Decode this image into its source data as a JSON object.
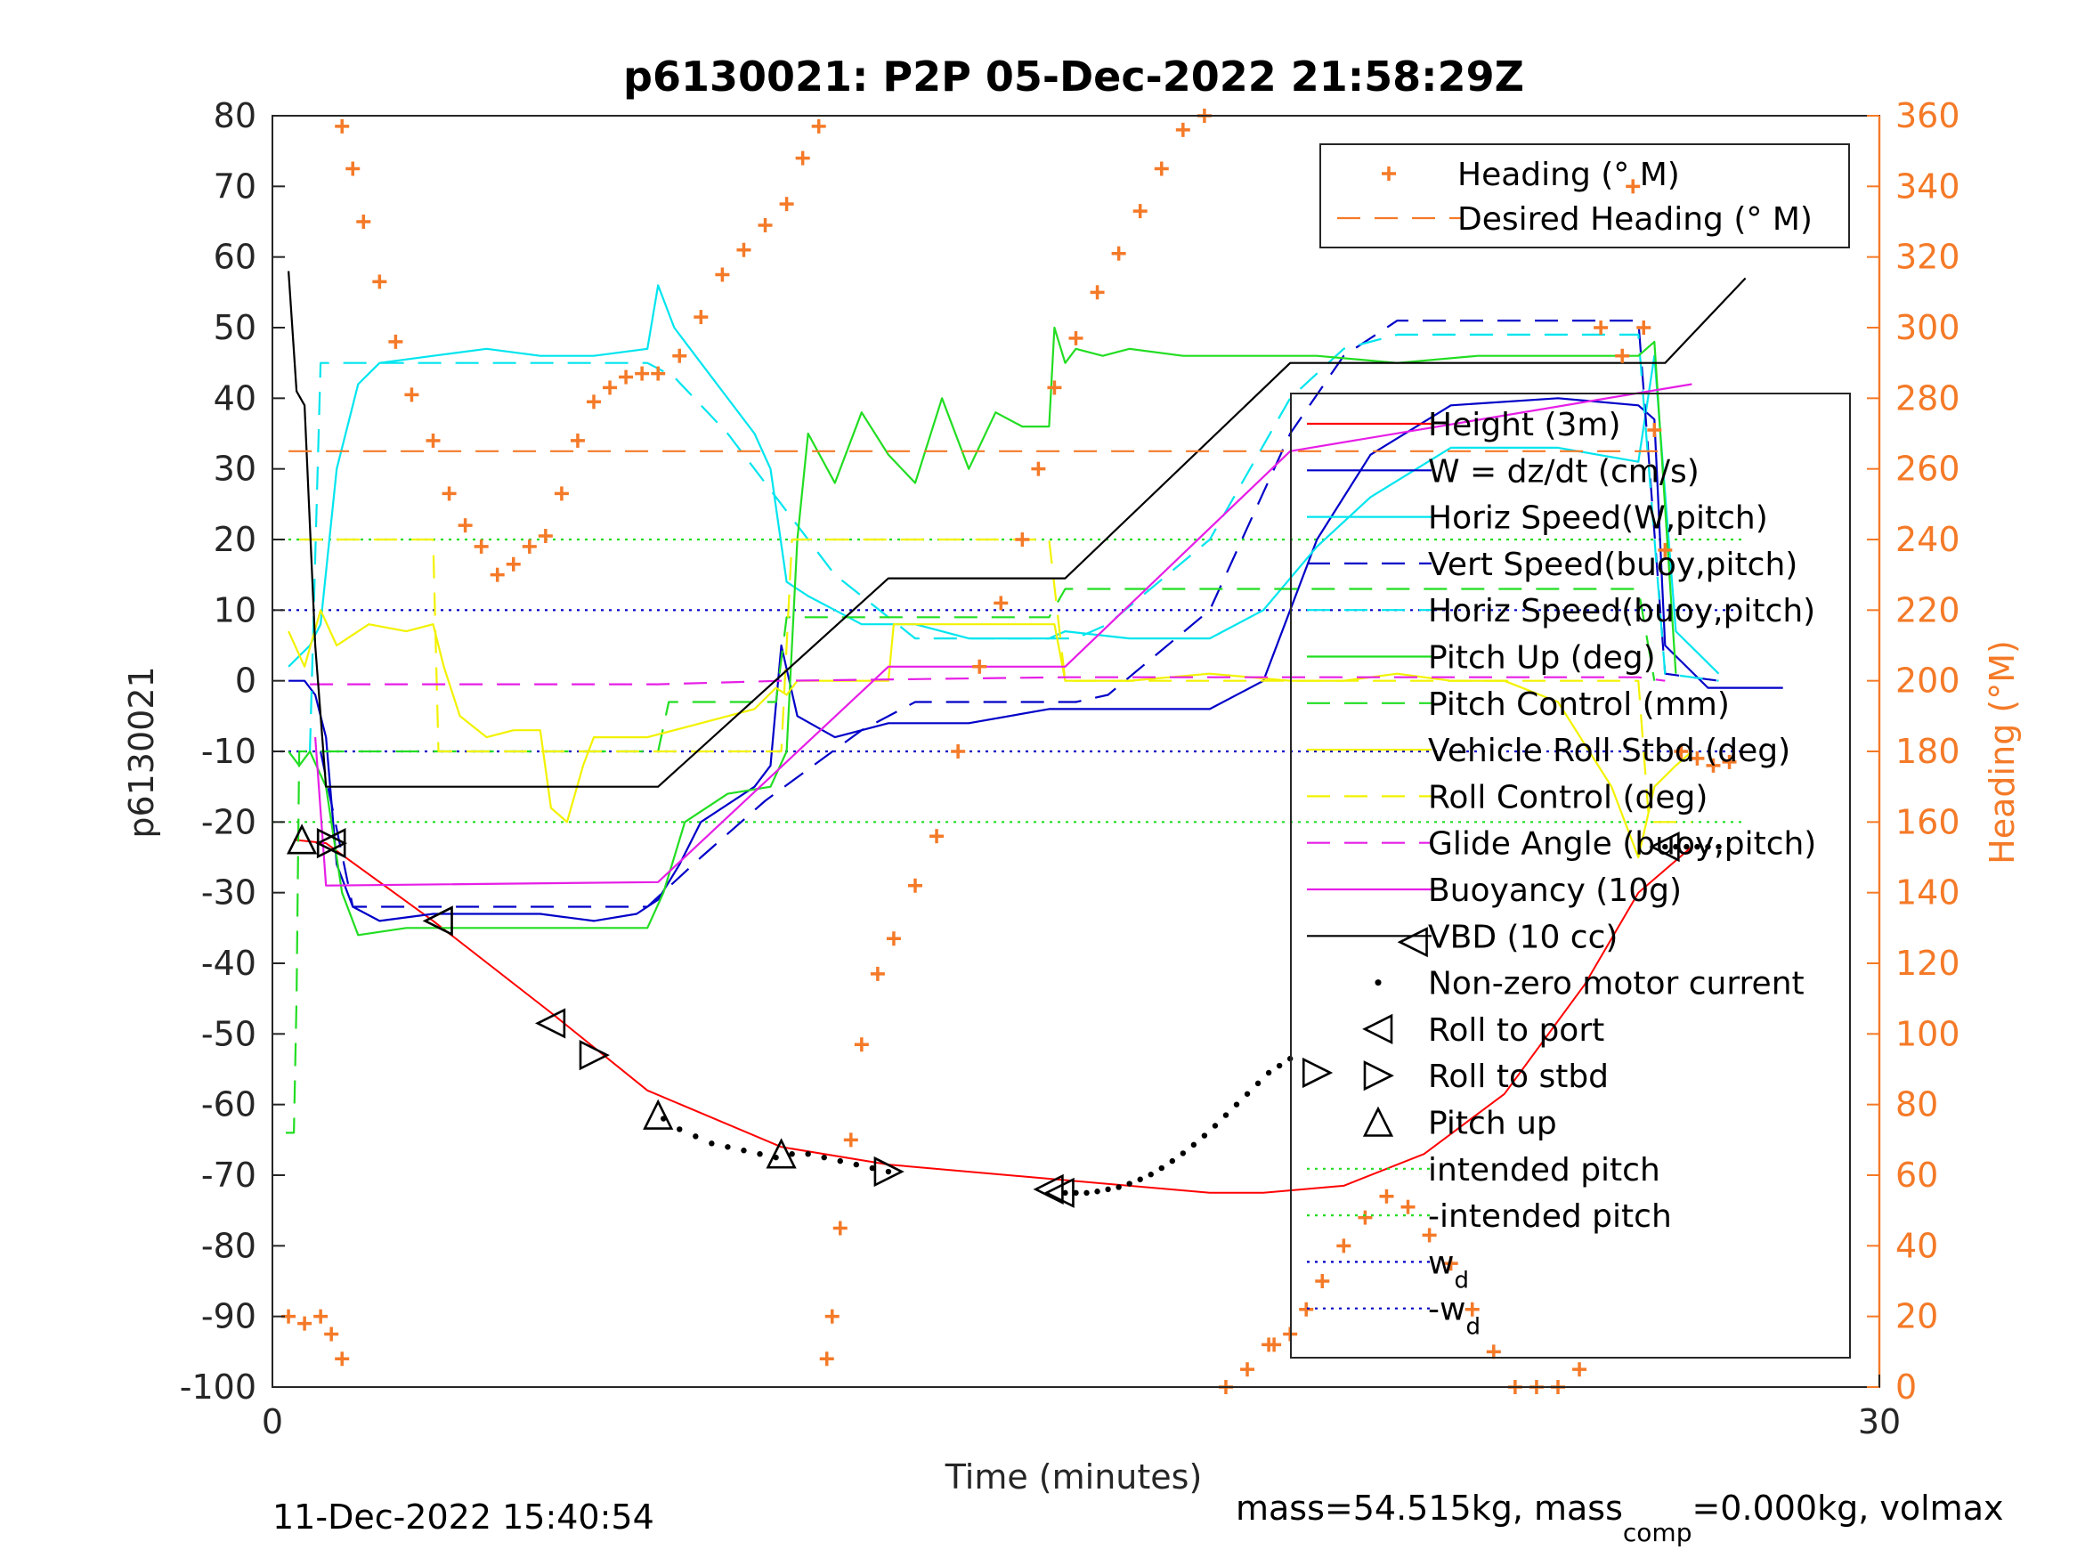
{
  "chart_data": {
    "type": "line",
    "title": "p6130021: P2P 05-Dec-2022 21:58:29Z",
    "xlabel": "Time (minutes)",
    "ylabel": "p6130021",
    "y2label": "Heading (°M)",
    "xlim": [
      0,
      30
    ],
    "ylim": [
      -100,
      80
    ],
    "y2lim": [
      0,
      360
    ],
    "xticks": [
      0,
      30
    ],
    "yticks": [
      -100,
      -90,
      -80,
      -70,
      -60,
      -50,
      -40,
      -30,
      -20,
      -10,
      0,
      10,
      20,
      30,
      40,
      50,
      60,
      70,
      80
    ],
    "y2ticks": [
      0,
      20,
      40,
      60,
      80,
      100,
      120,
      140,
      160,
      180,
      200,
      220,
      240,
      260,
      280,
      300,
      320,
      340,
      360
    ],
    "footer_left": "11-Dec-2022 15:40:54",
    "footer_right_parts": [
      "mass=54.515kg, mass",
      "comp",
      "=0.000kg, volmax"
    ],
    "colors": {
      "heading": "#f47a28",
      "axis_right": "#f47a28"
    },
    "legend_heading": [
      {
        "label": "Heading (° M)",
        "style": "plus",
        "color": "#f47a28"
      },
      {
        "label": "Desired Heading (° M)",
        "style": "dashed",
        "color": "#f47a28"
      }
    ],
    "legend_main": [
      {
        "label": "Height (3m)",
        "style": "solid",
        "color": "#ff0000"
      },
      {
        "label": "W = dz/dt (cm/s)",
        "style": "solid",
        "color": "#0000c8"
      },
      {
        "label": "Horiz Speed(W,pitch)",
        "style": "solid",
        "color": "#00e5ee"
      },
      {
        "label": "Vert Speed(buoy,pitch)",
        "style": "dashed",
        "color": "#0000c8"
      },
      {
        "label": "Horiz Speed(buoy,pitch)",
        "style": "dashed",
        "color": "#00e5ee"
      },
      {
        "label": "Pitch Up (deg)",
        "style": "solid",
        "color": "#22dd22"
      },
      {
        "label": "Pitch Control (mm)",
        "style": "dashed",
        "color": "#22dd22"
      },
      {
        "label": "Vehicle Roll Stbd (deg)",
        "style": "solid",
        "color": "#f2f200"
      },
      {
        "label": "Roll Control (deg)",
        "style": "dashed",
        "color": "#f2f200"
      },
      {
        "label": "Glide Angle (buoy,pitch)",
        "style": "dashed",
        "color": "#e61ee6"
      },
      {
        "label": "Buoyancy (10g)",
        "style": "solid",
        "color": "#e61ee6"
      },
      {
        "label": "VBD (10 cc)",
        "style": "solid",
        "color": "#000000"
      },
      {
        "label": "Non-zero motor current",
        "style": "dot",
        "color": "#000000"
      },
      {
        "label": "Roll to port",
        "style": "tri-left",
        "color": "#000000"
      },
      {
        "label": "Roll to stbd",
        "style": "tri-right",
        "color": "#000000"
      },
      {
        "label": "Pitch up",
        "style": "tri-up",
        "color": "#000000"
      },
      {
        "label": "intended pitch",
        "style": "dotted",
        "color": "#22dd22"
      },
      {
        "label": "-intended pitch",
        "style": "dotted",
        "color": "#22dd22"
      },
      {
        "label": "w",
        "sub": "d",
        "style": "dotted",
        "color": "#0000c8"
      },
      {
        "label": "-w",
        "sub": "d",
        "style": "dotted",
        "color": "#0000c8"
      }
    ],
    "series": [
      {
        "name": "Height (3m)",
        "axis": "left",
        "style": "solid",
        "color": "#ff0000",
        "x": [
          0.4,
          1.0,
          3.0,
          5.2,
          7.0,
          9.5,
          11.5,
          14.5,
          17.5,
          18.5,
          20.0,
          21.5,
          23.0,
          24.5,
          25.5,
          26.5
        ],
        "y": [
          -22.5,
          -23,
          -34,
          -47,
          -58,
          -66,
          -68.5,
          -70.5,
          -72.5,
          -72.5,
          -71.5,
          -67,
          -58.5,
          -43,
          -30,
          -23.5
        ]
      },
      {
        "name": "W = dz/dt (cm/s)",
        "axis": "left",
        "style": "solid",
        "color": "#0000c8",
        "x": [
          0.3,
          0.6,
          0.8,
          1.0,
          1.2,
          1.5,
          2.0,
          3.0,
          4.0,
          5.0,
          6.0,
          6.8,
          7.2,
          7.6,
          8.0,
          9.0,
          9.3,
          9.5,
          9.8,
          10.5,
          11.5,
          13.0,
          14.5,
          14.8,
          16.0,
          17.5,
          18.5,
          19.0,
          19.5,
          20.5,
          22.0,
          24.0,
          25.5,
          25.8,
          26.0,
          26.8,
          27.5,
          28.2
        ],
        "y": [
          0,
          0,
          -2,
          -8,
          -26,
          -32,
          -34,
          -33,
          -33,
          -33,
          -34,
          -33,
          -31,
          -26,
          -20,
          -15,
          -12,
          5,
          -5,
          -8,
          -6,
          -6,
          -4,
          -4,
          -4,
          -4,
          0,
          10,
          20,
          32,
          39,
          40,
          39,
          37,
          5,
          -1,
          -1,
          -1
        ]
      },
      {
        "name": "Horiz Speed(W,pitch)",
        "axis": "left",
        "style": "solid",
        "color": "#00e5ee",
        "x": [
          0.3,
          0.7,
          0.9,
          1.2,
          1.6,
          2.0,
          3.0,
          4.0,
          5.0,
          6.0,
          7.0,
          7.2,
          7.5,
          8.0,
          9.0,
          9.3,
          9.6,
          10.0,
          10.5,
          11.0,
          12.0,
          13.0,
          14.5,
          14.8,
          16.0,
          17.5,
          18.5,
          19.5,
          20.5,
          22.0,
          24.0,
          25.5,
          25.8,
          26.2,
          27.0
        ],
        "y": [
          2,
          5,
          8,
          30,
          42,
          45,
          46,
          47,
          46,
          46,
          47,
          56,
          50,
          45,
          35,
          30,
          14,
          12,
          10,
          8,
          8,
          6,
          6,
          7,
          6,
          6,
          10,
          19,
          26,
          33,
          33,
          31,
          46,
          7,
          1
        ]
      },
      {
        "name": "Vert Speed(buoy,pitch)",
        "axis": "left",
        "style": "dashed",
        "color": "#0000c8",
        "x": [
          0.9,
          1.5,
          7.0,
          8.0,
          9.2,
          11.0,
          12.0,
          13.0,
          14.0,
          15.0,
          15.6,
          17.5,
          19.0,
          20.0,
          21.0,
          25.5,
          26.0,
          27.0
        ],
        "y": [
          -10,
          -32,
          -32,
          -25,
          -17,
          -7,
          -3,
          -3,
          -3,
          -3,
          -2,
          10,
          35,
          46,
          51,
          51,
          1,
          0
        ]
      },
      {
        "name": "Horiz Speed(buoy,pitch)",
        "axis": "left",
        "style": "dashed",
        "color": "#00e5ee",
        "x": [
          0.7,
          0.9,
          1.2,
          7.0,
          7.5,
          8.5,
          10.5,
          12.0,
          13.5,
          15.0,
          15.6,
          17.5,
          19.0,
          20.0,
          21.0,
          25.5,
          26.0,
          27.0
        ],
        "y": [
          -10,
          45,
          45,
          45,
          43,
          35,
          15,
          6,
          6,
          6,
          8,
          20,
          40,
          47,
          49,
          49,
          1,
          0
        ]
      },
      {
        "name": "Pitch Up (deg)",
        "axis": "left",
        "style": "solid",
        "color": "#22dd22",
        "x": [
          0.3,
          0.5,
          0.7,
          1.0,
          1.3,
          1.6,
          2.5,
          4.0,
          5.5,
          7.0,
          7.3,
          7.7,
          8.5,
          9.3,
          9.6,
          9.8,
          10.0,
          10.5,
          11.0,
          11.5,
          12.0,
          12.5,
          13.0,
          13.5,
          14.0,
          14.5,
          14.6,
          14.8,
          15.0,
          15.5,
          16.0,
          17.0,
          18.0,
          19.5,
          21.0,
          22.5,
          24.0,
          25.5,
          25.8,
          26.2
        ],
        "y": [
          -10,
          -12,
          -10,
          -15,
          -30,
          -36,
          -35,
          -35,
          -35,
          -35,
          -30,
          -20,
          -16,
          -15,
          -10,
          20,
          35,
          28,
          38,
          32,
          28,
          40,
          30,
          38,
          36,
          36,
          50,
          45,
          47,
          46,
          47,
          46,
          46,
          46,
          45,
          46,
          46,
          46,
          48,
          1
        ]
      },
      {
        "name": "Pitch Control (mm)",
        "axis": "left",
        "style": "dashed",
        "color": "#22dd22",
        "x": [
          0.25,
          0.4,
          0.45,
          0.5,
          0.9,
          1.2,
          7.2,
          7.4,
          9.4,
          9.6,
          14.5,
          14.8,
          25.5,
          25.8
        ],
        "y": [
          -64,
          -64,
          -45,
          -10,
          -10,
          -10,
          -10,
          -3,
          -3,
          9,
          9,
          13,
          13,
          0
        ]
      },
      {
        "name": "Vehicle Roll Stbd (deg)",
        "axis": "left",
        "style": "solid",
        "color": "#f2f200",
        "x": [
          0.3,
          0.6,
          0.9,
          1.2,
          1.8,
          2.5,
          3.0,
          3.2,
          3.5,
          4.0,
          4.5,
          5.0,
          5.2,
          5.5,
          5.8,
          6.0,
          6.5,
          7.0,
          8.0,
          9.0,
          9.4,
          9.6,
          9.8,
          10.0,
          11.0,
          11.5,
          11.6,
          12.5,
          13.0,
          14.0,
          14.6,
          14.8,
          16.0,
          17.5,
          19.0,
          20.0,
          21.0,
          22.0,
          23.0,
          24.0,
          25.0,
          25.5,
          25.8,
          26.2,
          26.5
        ],
        "y": [
          7,
          2,
          10,
          5,
          8,
          7,
          8,
          2,
          -5,
          -8,
          -7,
          -7,
          -18,
          -20,
          -12,
          -8,
          -8,
          -8,
          -6,
          -4,
          -1,
          -2,
          0,
          0,
          0,
          0,
          8,
          8,
          8,
          8,
          8,
          0,
          0,
          1,
          0,
          0,
          1,
          0,
          0,
          -3,
          -15,
          -25,
          -15,
          -12,
          -10
        ]
      },
      {
        "name": "Roll Control (deg)",
        "axis": "left",
        "style": "dashed",
        "color": "#f2f200",
        "x": [
          0.5,
          0.8,
          3.0,
          3.1,
          9.5,
          9.7,
          14.5,
          14.8,
          25.5,
          25.7,
          26.5
        ],
        "y": [
          20,
          20,
          20,
          -10,
          -10,
          20,
          20,
          0,
          0,
          -20,
          -20
        ]
      },
      {
        "name": "Glide Angle (buoy,pitch)",
        "axis": "left",
        "style": "dashed",
        "color": "#e61ee6",
        "x": [
          0.7,
          1.0,
          7.2,
          9.5,
          14.8,
          25.5,
          26.0
        ],
        "y": [
          -0.5,
          -0.5,
          -0.5,
          0,
          0.5,
          0.5,
          0
        ]
      },
      {
        "name": "Buoyancy (10g)",
        "axis": "left",
        "style": "solid",
        "color": "#e61ee6",
        "x": [
          0.8,
          1.0,
          7.2,
          11.5,
          14.8,
          19.0,
          26.5
        ],
        "y": [
          -8,
          -29,
          -28.5,
          2,
          2,
          32.5,
          42
        ]
      },
      {
        "name": "VBD (10 cc)",
        "axis": "left",
        "style": "solid",
        "color": "#000000",
        "x": [
          0.3,
          0.45,
          0.6,
          0.8,
          1.0,
          7.2,
          11.5,
          14.8,
          19.0,
          26.0,
          27.5
        ],
        "y": [
          58,
          41,
          39,
          5,
          -15,
          -15,
          14.5,
          14.5,
          45,
          45,
          57
        ]
      },
      {
        "name": "Desired Heading (° M)",
        "axis": "right",
        "style": "dashed",
        "color": "#f47a28",
        "x": [
          0.3,
          26.0
        ],
        "y": [
          265,
          265
        ]
      },
      {
        "name": "Heading (° M)",
        "axis": "right",
        "style": "plus",
        "color": "#f47a28",
        "x": [
          0.3,
          0.6,
          0.9,
          1.1,
          1.3,
          1.3,
          1.5,
          1.7,
          2.0,
          2.3,
          2.6,
          3.0,
          3.3,
          3.6,
          3.9,
          4.2,
          4.5,
          4.8,
          5.1,
          5.4,
          5.7,
          6.0,
          6.3,
          6.6,
          6.9,
          7.2,
          7.6,
          8.0,
          8.4,
          8.8,
          9.2,
          9.6,
          9.9,
          10.2,
          10.35,
          10.45,
          10.6,
          10.8,
          11.0,
          11.3,
          11.6,
          12.0,
          12.4,
          12.8,
          13.2,
          13.6,
          14.0,
          14.3,
          14.6,
          15.0,
          15.4,
          15.8,
          16.2,
          16.6,
          17.0,
          17.4,
          17.8,
          18.2,
          18.6,
          18.7,
          19.0,
          19.3,
          19.6,
          20.0,
          20.4,
          20.8,
          21.2,
          21.6,
          22.0,
          22.4,
          22.8,
          23.2,
          23.6,
          24.0,
          24.4,
          24.8,
          25.2,
          25.4,
          25.6,
          25.8,
          26.0,
          26.3,
          26.6,
          26.9,
          27.2
        ],
        "y": [
          20,
          18,
          20,
          15,
          8,
          357,
          345,
          330,
          313,
          296,
          281,
          268,
          253,
          244,
          238,
          230,
          233,
          238,
          241,
          253,
          268,
          279,
          283,
          286,
          287,
          287,
          292,
          303,
          315,
          322,
          329,
          335,
          348,
          357,
          8,
          20,
          45,
          70,
          97,
          117,
          127,
          142,
          156,
          180,
          204,
          222,
          240,
          260,
          283,
          297,
          310,
          321,
          333,
          345,
          356,
          360,
          0,
          5,
          12,
          12,
          15,
          22,
          30,
          40,
          48,
          54,
          51,
          43,
          35,
          22,
          10,
          0,
          0,
          0,
          5,
          300,
          292,
          340,
          300,
          271,
          237,
          180,
          178,
          176,
          177
        ]
      }
    ],
    "markers": {
      "motor_current_x": [
        7.3,
        7.6,
        7.9,
        8.2,
        8.5,
        8.8,
        9.1,
        9.4,
        9.7,
        10.0,
        10.3,
        10.6,
        10.9,
        11.2,
        11.5,
        14.8,
        15.0,
        15.2,
        15.4,
        15.6,
        15.8,
        16.0,
        16.2,
        16.4,
        16.6,
        16.8,
        17.0,
        17.2,
        17.4,
        17.6,
        17.8,
        18.0,
        18.2,
        18.4,
        18.6,
        18.8,
        19.0,
        26.0,
        26.2,
        26.4,
        26.6,
        26.8,
        27.0
      ],
      "motor_current_y": [
        -62,
        -63.5,
        -64.5,
        -65.5,
        -66,
        -66.5,
        -67,
        -67.5,
        -67,
        -67,
        -67.5,
        -68,
        -68.5,
        -69,
        -69.5,
        -72.5,
        -72.5,
        -72.5,
        -72.3,
        -72,
        -71.7,
        -71.2,
        -70.6,
        -69.9,
        -69.0,
        -68.0,
        -66.9,
        -65.7,
        -64.4,
        -63.0,
        -61.5,
        -60.0,
        -58.5,
        -57.0,
        -55.5,
        -54.5,
        -53.5,
        -23.5,
        -23.5,
        -23.5,
        -23.5,
        -23.5,
        -23.5
      ],
      "roll_to_port": [
        [
          1.1,
          -23
        ],
        [
          3.1,
          -34
        ],
        [
          5.2,
          -48.5
        ],
        [
          14.5,
          -72
        ],
        [
          14.7,
          -72.5
        ],
        [
          26.0,
          -23.5
        ],
        [
          21.3,
          -37
        ]
      ],
      "roll_to_stbd": [
        [
          1.1,
          -23
        ],
        [
          6.0,
          -53
        ],
        [
          11.5,
          -69.5
        ],
        [
          19.5,
          -55.5
        ]
      ],
      "pitch_up": [
        [
          0.55,
          -22.5
        ],
        [
          7.2,
          -61.5
        ],
        [
          9.5,
          -67
        ]
      ]
    }
  }
}
